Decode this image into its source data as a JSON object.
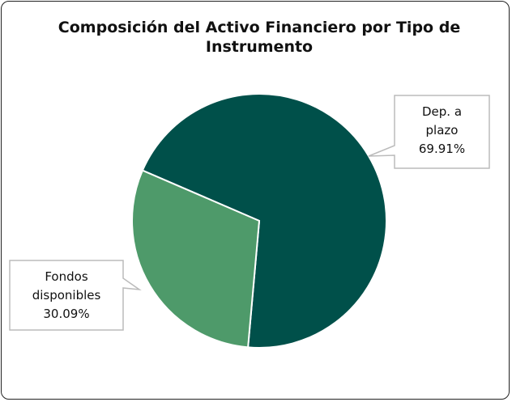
{
  "chart_data": {
    "type": "pie",
    "title": "Composición del Activo Financiero por Tipo de Instrumento",
    "categories": [
      "Dep. a plazo",
      "Fondos disponibles"
    ],
    "values": [
      69.91,
      30.09
    ],
    "value_labels": [
      "69.91%",
      "30.09%"
    ],
    "colors": [
      "#00504a",
      "#4e9a6a"
    ]
  }
}
